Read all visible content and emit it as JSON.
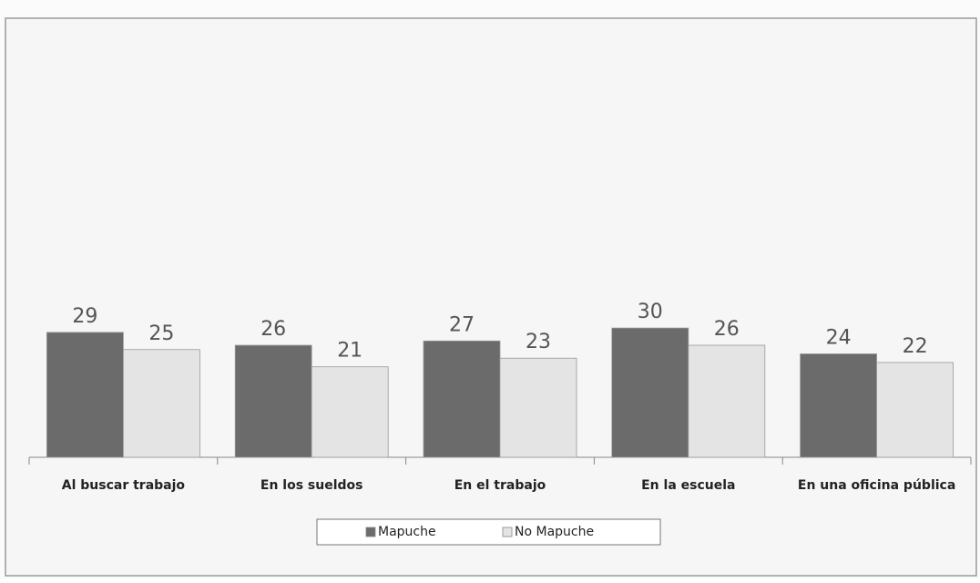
{
  "chart_data": {
    "type": "bar",
    "categories": [
      "Al buscar trabajo",
      "En los sueldos",
      "En el trabajo",
      "En la escuela",
      "En una oficina pública"
    ],
    "series": [
      {
        "name": "Mapuche",
        "color": "#6b6b6b",
        "values": [
          29,
          26,
          27,
          30,
          24
        ]
      },
      {
        "name": "No Mapuche",
        "color": "#e4e4e4",
        "values": [
          25,
          21,
          23,
          26,
          22
        ]
      }
    ],
    "ylim": [
      0,
      100
    ],
    "legend": "bottom"
  }
}
